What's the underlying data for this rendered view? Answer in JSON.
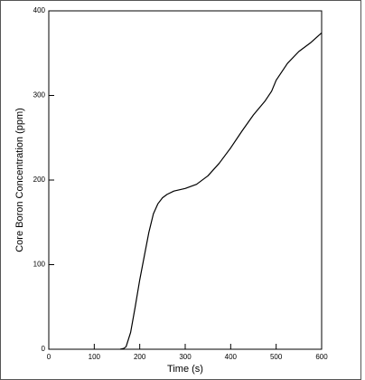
{
  "chart_data": {
    "type": "line",
    "x_label": "Time (s)",
    "y_label": "Core Boron Concentration (ppm)",
    "x": [
      157,
      165,
      170,
      180,
      190,
      200,
      210,
      220,
      230,
      240,
      250,
      260,
      275,
      300,
      325,
      350,
      375,
      400,
      425,
      450,
      475,
      490,
      500,
      525,
      550,
      575,
      600
    ],
    "series": [
      {
        "color": "#000000",
        "values": [
          0,
          1,
          3,
          20,
          50,
          82,
          110,
          138,
          160,
          172,
          179,
          183,
          187,
          190,
          195,
          205,
          220,
          238,
          258,
          277,
          293,
          305,
          318,
          338,
          352,
          362,
          374
        ]
      }
    ],
    "xlim": [
      0,
      600
    ],
    "xticks": [
      0,
      100,
      200,
      300,
      400,
      500,
      600
    ],
    "ylim": [
      0,
      400
    ],
    "yticks": [
      0,
      100,
      200,
      300,
      400
    ],
    "grid": false
  }
}
